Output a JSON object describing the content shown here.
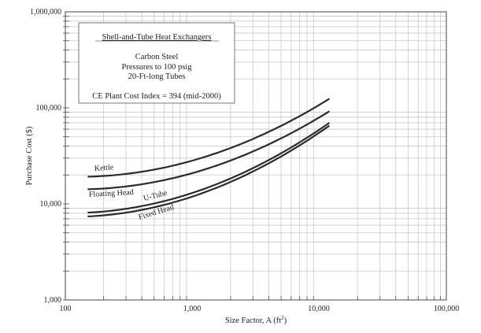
{
  "chart_data": {
    "type": "line",
    "scale": "log-log",
    "xlabel": "Size Factor, A (ft",
    "xlabel_sup": "2",
    "xlabel_close": ")",
    "ylabel": "Purchase Cost ($)",
    "xlim": [
      100,
      100000
    ],
    "ylim": [
      1000,
      1000000
    ],
    "grid": true,
    "x_ticks": [
      100,
      1000,
      10000,
      100000
    ],
    "x_tick_labels": [
      "100",
      "1,000",
      "10,000",
      "100,000"
    ],
    "y_ticks": [
      1000,
      10000,
      100000,
      1000000
    ],
    "y_tick_labels": [
      "1,000",
      "10,000",
      "100,000",
      "1,000,000"
    ],
    "annotation_box": {
      "title": "Shell-and-Tube Heat Exchangers",
      "lines": [
        "Carbon Steel",
        "Pressures to 100 psig",
        "20-Ft-long Tubes"
      ],
      "index_note": "CE Plant Cost Index = 394 (mid-2000)"
    },
    "x": [
      150,
      300,
      600,
      1000,
      2000,
      4000,
      7000,
      12000
    ],
    "series": [
      {
        "name": "Kettle",
        "values": [
          19200,
          20500,
          23900,
          28200,
          38200,
          56300,
          82100,
          124400
        ]
      },
      {
        "name": "Floating Head",
        "values": [
          14200,
          15200,
          17700,
          20900,
          28300,
          41700,
          60800,
          92200
        ]
      },
      {
        "name": "U-Tube",
        "values": [
          8100,
          8900,
          10700,
          13000,
          18400,
          28600,
          43800,
          70000
        ]
      },
      {
        "name": "Fixed Head",
        "values": [
          7400,
          8100,
          9800,
          11900,
          16900,
          26500,
          40700,
          65300
        ]
      }
    ],
    "line_color": "#2a2a2a",
    "grid_color": "#c9c9c9"
  }
}
